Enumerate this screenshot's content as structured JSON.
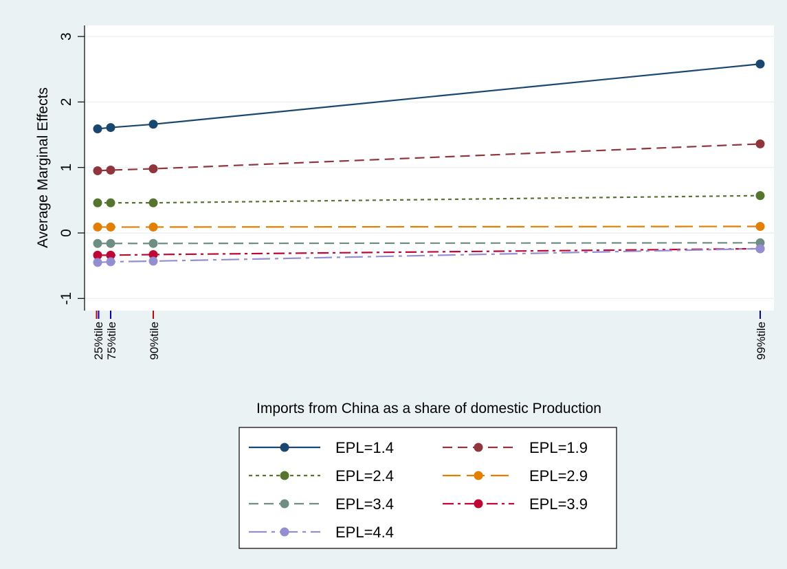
{
  "chart_data": {
    "type": "line",
    "title": "",
    "xlabel": "Imports from China as a share of domestic Production",
    "ylabel": "Average Marginal Effects",
    "y_ticks": [
      "3",
      "2",
      "1",
      "0",
      "-1"
    ],
    "ylim": [
      -1.1,
      3.15
    ],
    "grid": true,
    "legend_position": "bottom",
    "x_markers": [
      {
        "label": "25%tile",
        "x": 0,
        "line_colors": [
          "#cc0000",
          "#0000cc"
        ]
      },
      {
        "label": "75%tile",
        "x": 1,
        "line_colors": [
          "#0000cc"
        ]
      },
      {
        "label": "90%tile",
        "x": 4,
        "line_colors": [
          "#cc0000"
        ]
      },
      {
        "label": "99%tile",
        "x": 51,
        "line_colors": [
          "#0000cc"
        ]
      }
    ],
    "x": [
      0,
      1,
      4,
      51
    ],
    "series": [
      {
        "name": "EPL=1.4",
        "values": [
          1.59,
          1.61,
          1.66,
          2.58
        ],
        "color": "#1a476f",
        "dash": "solid"
      },
      {
        "name": "EPL=1.9",
        "values": [
          0.95,
          0.96,
          0.98,
          1.36
        ],
        "color": "#90353b",
        "dash": "dash"
      },
      {
        "name": "EPL=2.4",
        "values": [
          0.46,
          0.46,
          0.46,
          0.57
        ],
        "color": "#55752f",
        "dash": "shortdash"
      },
      {
        "name": "EPL=2.9",
        "values": [
          0.09,
          0.09,
          0.09,
          0.1
        ],
        "color": "#e37e00",
        "dash": "longdash"
      },
      {
        "name": "EPL=3.4",
        "values": [
          -0.16,
          -0.16,
          -0.16,
          -0.15
        ],
        "color": "#6e8e84",
        "dash": "dash"
      },
      {
        "name": "EPL=3.9",
        "values": [
          -0.34,
          -0.34,
          -0.33,
          -0.24
        ],
        "color": "#c10534",
        "dash": "dashdot"
      },
      {
        "name": "EPL=4.4",
        "values": [
          -0.45,
          -0.44,
          -0.43,
          -0.24
        ],
        "color": "#938dd2",
        "dash": "longdashdot"
      }
    ]
  },
  "colors": {
    "outer_background": "#eaf2f3",
    "plot_background": "#ffffff",
    "grid": "#eaf2f3"
  }
}
